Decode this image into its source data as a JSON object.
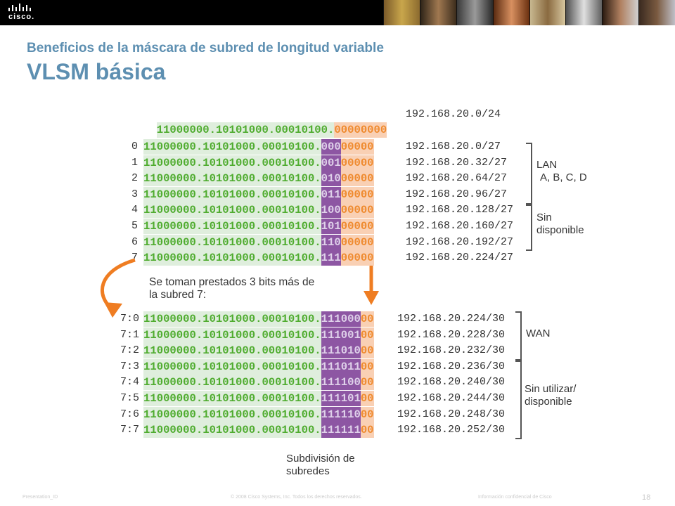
{
  "header": {
    "logo_text": "cisco."
  },
  "slide": {
    "subtitle": "Beneficios de la máscara de subred de longitud variable",
    "title": "VLSM básica"
  },
  "base_row": {
    "net": "11000000.10101000.00010100.",
    "host": "00000000",
    "address": "192.168.20.0/24"
  },
  "level1_rows": [
    {
      "index": "0",
      "net": "11000000.10101000.00010100.",
      "sub": "000",
      "host": "00000",
      "address": "192.168.20.0/27"
    },
    {
      "index": "1",
      "net": "11000000.10101000.00010100.",
      "sub": "001",
      "host": "00000",
      "address": "192.168.20.32/27"
    },
    {
      "index": "2",
      "net": "11000000.10101000.00010100.",
      "sub": "010",
      "host": "00000",
      "address": "192.168.20.64/27"
    },
    {
      "index": "3",
      "net": "11000000.10101000.00010100.",
      "sub": "011",
      "host": "00000",
      "address": "192.168.20.96/27"
    },
    {
      "index": "4",
      "net": "11000000.10101000.00010100.",
      "sub": "100",
      "host": "00000",
      "address": "192.168.20.128/27"
    },
    {
      "index": "5",
      "net": "11000000.10101000.00010100.",
      "sub": "101",
      "host": "00000",
      "address": "192.168.20.160/27"
    },
    {
      "index": "6",
      "net": "11000000.10101000.00010100.",
      "sub": "110",
      "host": "00000",
      "address": "192.168.20.192/27"
    },
    {
      "index": "7",
      "net": "11000000.10101000.00010100.",
      "sub": "111",
      "host": "00000",
      "address": "192.168.20.224/27"
    }
  ],
  "level2_rows": [
    {
      "index": "7:0",
      "net": "11000000.10101000.00010100.",
      "sub": "111000",
      "host": "00",
      "address": "192.168.20.224/30"
    },
    {
      "index": "7:1",
      "net": "11000000.10101000.00010100.",
      "sub": "111001",
      "host": "00",
      "address": "192.168.20.228/30"
    },
    {
      "index": "7:2",
      "net": "11000000.10101000.00010100.",
      "sub": "111010",
      "host": "00",
      "address": "192.168.20.232/30"
    },
    {
      "index": "7:3",
      "net": "11000000.10101000.00010100.",
      "sub": "111011",
      "host": "00",
      "address": "192.168.20.236/30"
    },
    {
      "index": "7:4",
      "net": "11000000.10101000.00010100.",
      "sub": "111100",
      "host": "00",
      "address": "192.168.20.240/30"
    },
    {
      "index": "7:5",
      "net": "11000000.10101000.00010100.",
      "sub": "111101",
      "host": "00",
      "address": "192.168.20.244/30"
    },
    {
      "index": "7:6",
      "net": "11000000.10101000.00010100.",
      "sub": "111110",
      "host": "00",
      "address": "192.168.20.248/30"
    },
    {
      "index": "7:7",
      "net": "11000000.10101000.00010100.",
      "sub": "111111",
      "host": "00",
      "address": "192.168.20.252/30"
    }
  ],
  "labels": {
    "lan_line1": "LAN",
    "lan_line2": "A, B, C, D",
    "sin_line1": "Sin",
    "sin_line2": "disponible",
    "borrow_line1": "Se toman prestados 3 bits más de",
    "borrow_line2": "la subred 7:",
    "wan": "WAN",
    "unused_line1": "Sin utilizar/",
    "unused_line2": "disponible",
    "caption_line1": "Subdivisión de",
    "caption_line2": "subredes"
  },
  "footer": {
    "presentation_id": "Presentation_ID",
    "copyright": "© 2008 Cisco Systems, Inc. Todos los derechos reservados.",
    "confidential": "Información confidencial de Cisco",
    "page_number": "18"
  },
  "colors": {
    "network_bits": "#4fac2f",
    "subnet_bits": "#8d56a3",
    "host_bits": "#ef8a2e",
    "arrow": "#ef7d22",
    "title": "#5d8fb1"
  }
}
